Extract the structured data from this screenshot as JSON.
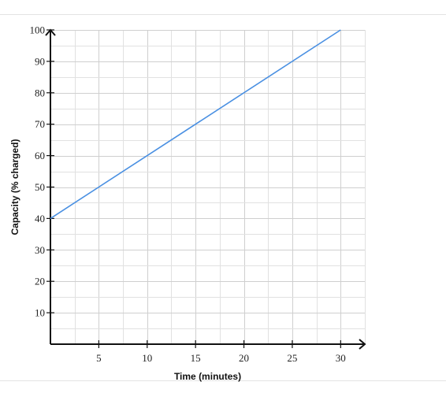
{
  "chart_data": {
    "type": "line",
    "title": "",
    "xlabel": "Time (minutes)",
    "ylabel": "Capacity (% charged)",
    "xlim": [
      0,
      32.5
    ],
    "ylim": [
      0,
      100
    ],
    "x_ticks": [
      5,
      10,
      15,
      20,
      25,
      30
    ],
    "y_ticks": [
      10,
      20,
      30,
      40,
      50,
      60,
      70,
      80,
      90,
      100
    ],
    "x_minor_step": 2.5,
    "y_minor_step": 5,
    "grid": true,
    "series": [
      {
        "x": [
          0,
          30
        ],
        "y": [
          40,
          100
        ],
        "color": "#4a90e2"
      }
    ]
  }
}
